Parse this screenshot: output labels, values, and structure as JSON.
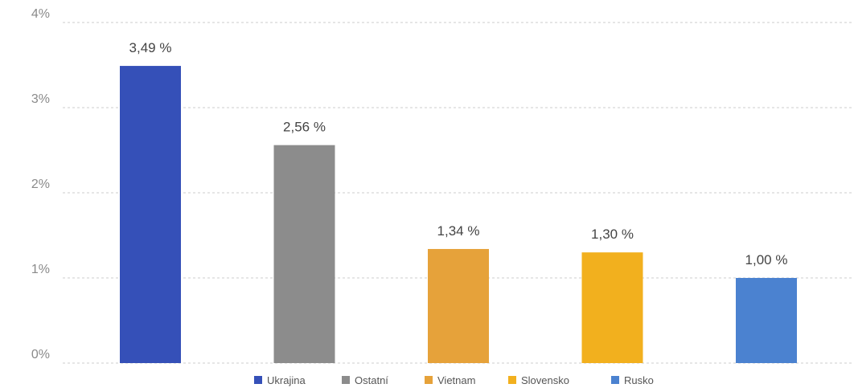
{
  "chart_data": {
    "type": "bar",
    "categories": [
      "Ukrajina",
      "Ostatní",
      "Vietnam",
      "Slovensko",
      "Rusko"
    ],
    "values": [
      3.49,
      2.56,
      1.34,
      1.3,
      1.0
    ],
    "data_labels": [
      "3,49 %",
      "2,56 %",
      "1,34 %",
      "1,30 %",
      "1,00 %"
    ],
    "colors": [
      "#3550b8",
      "#8c8c8c",
      "#e6a23a",
      "#f2b01e",
      "#4b82d0"
    ],
    "y_ticks": [
      0,
      1,
      2,
      3,
      4
    ],
    "y_tick_labels": [
      "0%",
      "1%",
      "2%",
      "3%",
      "4%"
    ],
    "ylim": [
      0,
      4
    ],
    "grid": true,
    "legend": {
      "position": "bottom",
      "items": [
        "Ukrajina",
        "Ostatní",
        "Vietnam",
        "Slovensko",
        "Rusko"
      ]
    }
  }
}
